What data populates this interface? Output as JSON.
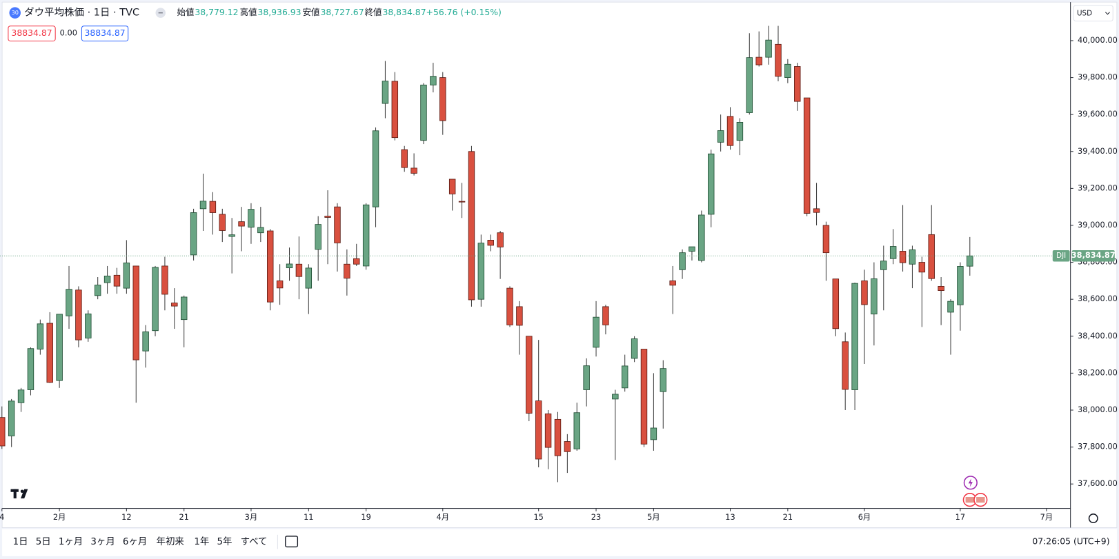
{
  "header": {
    "symbol_badge": "30",
    "title": "ダウ平均株価 · 1日 · TVC",
    "ohlc": [
      {
        "label": "始値",
        "value": "38,779.12"
      },
      {
        "label": "高値",
        "value": "38,936.93"
      },
      {
        "label": "安値",
        "value": "38,727.67"
      },
      {
        "label": "終値",
        "value": "38,834.87"
      }
    ],
    "change": "+56.76 (+0.15%)",
    "sell_price": "38834.87",
    "spread": "0.00",
    "buy_price": "38834.87"
  },
  "currency": "USD",
  "chart_data": {
    "type": "candlestick",
    "grid": false,
    "series": [
      {
        "name": "DJI",
        "up_color": "#6aa584",
        "down_color": "#d9503f",
        "open": [
          37960,
          37860,
          38040,
          38110,
          38330,
          38470,
          38160,
          38510,
          38650,
          38390,
          38620,
          38690,
          38730,
          38660,
          38780,
          38320,
          38430,
          38780,
          38580,
          38490,
          38840,
          39090,
          39130,
          39060,
          38940,
          39020,
          38990,
          38960,
          38970,
          38700,
          38770,
          38790,
          38660,
          38870,
          39050,
          39100,
          38790,
          38820,
          38780,
          39100,
          39660,
          39780,
          39410,
          39310,
          39460,
          39760,
          39800,
          39250,
          39130,
          39400,
          38600,
          38920,
          38960,
          38660,
          38560,
          38400,
          38050,
          37980,
          37950,
          37830,
          37790,
          38110,
          38340,
          38560,
          38060,
          38120,
          38280,
          38330,
          37840,
          38100,
          38700,
          38760,
          38860,
          38810,
          39060,
          39450,
          39590,
          39460,
          39610,
          39910,
          39910,
          39980,
          39800,
          39860,
          39690,
          39090,
          39000,
          38710,
          38370,
          38110,
          38700,
          38520,
          38760,
          38820,
          38860,
          38790,
          38800,
          38950,
          38670,
          38530,
          38570,
          38779.12
        ],
        "high": [
          38020,
          38060,
          38120,
          38340,
          38490,
          38530,
          38520,
          38780,
          38670,
          38540,
          38720,
          38780,
          38770,
          38920,
          38780,
          38460,
          38780,
          38830,
          38660,
          38620,
          39090,
          39280,
          39180,
          39090,
          39040,
          39100,
          39120,
          39100,
          38980,
          38790,
          38880,
          38940,
          38790,
          39050,
          39190,
          39120,
          38870,
          38900,
          39120,
          39530,
          39890,
          39830,
          39430,
          39390,
          39770,
          39880,
          39830,
          39250,
          39230,
          39430,
          38950,
          38950,
          38970,
          38670,
          38590,
          38400,
          38380,
          38000,
          37990,
          37870,
          38040,
          38280,
          38590,
          38570,
          38110,
          38300,
          38400,
          38330,
          38200,
          38270,
          38780,
          38870,
          38880,
          39080,
          39410,
          39600,
          39640,
          39580,
          40040,
          40050,
          40080,
          40080,
          39900,
          39880,
          39690,
          39230,
          39020,
          38710,
          38420,
          38690,
          38760,
          38800,
          38890,
          38980,
          39110,
          38890,
          38830,
          39110,
          38720,
          38600,
          38800,
          38936.93
        ],
        "low": [
          37790,
          37800,
          37990,
          38080,
          38300,
          38147,
          38120,
          38440,
          38340,
          38370,
          38600,
          38630,
          38630,
          38630,
          38040,
          38230,
          38400,
          38540,
          38440,
          38340,
          38810,
          38970,
          38950,
          38910,
          38740,
          38860,
          38900,
          38910,
          38540,
          38570,
          38700,
          38600,
          38520,
          38700,
          38790,
          38750,
          38620,
          38780,
          38760,
          38990,
          39580,
          39460,
          39290,
          39270,
          39440,
          39720,
          39490,
          39080,
          39040,
          38560,
          38560,
          38860,
          38710,
          38450,
          38300,
          37940,
          37690,
          37680,
          37610,
          37660,
          37780,
          38020,
          38290,
          38410,
          37730,
          38100,
          38260,
          37800,
          37780,
          37900,
          38520,
          38710,
          38810,
          38800,
          38990,
          39400,
          39410,
          39380,
          39600,
          39860,
          39870,
          39780,
          39770,
          39620,
          39050,
          39000,
          38700,
          38400,
          38000,
          38000,
          38250,
          38350,
          38540,
          38790,
          38750,
          38660,
          38450,
          38700,
          38460,
          38300,
          38430,
          38727.67
        ],
        "close": [
          37806,
          38049,
          38109,
          38333,
          38467,
          38150,
          38519,
          38654,
          38380,
          38521,
          38677,
          38726,
          38671,
          38797,
          38272,
          38424,
          38773,
          38627,
          38563,
          38612,
          39069,
          39131,
          39069,
          38972,
          38949,
          38996,
          39087,
          38989,
          38585,
          38661,
          38791,
          38723,
          38769,
          39005,
          39043,
          38905,
          38714,
          38790,
          39111,
          39512,
          39781,
          39475,
          39313,
          39282,
          39760,
          39807,
          39567,
          39170,
          39127,
          38597,
          38904,
          38892,
          38883,
          38461,
          38459,
          37983,
          37735,
          37798,
          37753,
          37775,
          37986,
          38240,
          38503,
          38461,
          38086,
          38239,
          38386,
          37816,
          37903,
          38225,
          38676,
          38852,
          38884,
          39056,
          39387,
          39513,
          39432,
          39558,
          39908,
          39869,
          40003,
          39807,
          39872,
          39671,
          39065,
          39070,
          38852,
          38441,
          38112,
          38686,
          38571,
          38711,
          38807,
          38886,
          38798,
          38868,
          38747,
          38712,
          38647,
          38589,
          38778,
          38834.87
        ]
      }
    ],
    "last_price_label": "38,834.87",
    "ylim": [
      37468,
      40220
    ],
    "yticks": [
      {
        "value": 37600,
        "label": "37,600.00"
      },
      {
        "value": 37800,
        "label": "37,800.00"
      },
      {
        "value": 38000,
        "label": "38,000.00"
      },
      {
        "value": 38200,
        "label": "38,200.00"
      },
      {
        "value": 38400,
        "label": "38,400.00"
      },
      {
        "value": 38600,
        "label": "38,600.00"
      },
      {
        "value": 38800,
        "label": "38,800.00"
      },
      {
        "value": 39000,
        "label": "39,000.00"
      },
      {
        "value": 39200,
        "label": "39,200.00"
      },
      {
        "value": 39400,
        "label": "39,400.00"
      },
      {
        "value": 39600,
        "label": "39,600.00"
      },
      {
        "value": 39800,
        "label": "39,800.00"
      },
      {
        "value": 40000,
        "label": "40,000.00"
      }
    ],
    "xlim": [
      -0.2,
      111.5
    ],
    "xticks": [
      {
        "value": 0,
        "label": "4"
      },
      {
        "value": 6,
        "label": "2月"
      },
      {
        "value": 13,
        "label": "12"
      },
      {
        "value": 19,
        "label": "21"
      },
      {
        "value": 26,
        "label": "3月"
      },
      {
        "value": 32,
        "label": "11"
      },
      {
        "value": 38,
        "label": "19"
      },
      {
        "value": 46,
        "label": "4月"
      },
      {
        "value": 56,
        "label": "15"
      },
      {
        "value": 62,
        "label": "23"
      },
      {
        "value": 68,
        "label": "5月"
      },
      {
        "value": 76,
        "label": "13"
      },
      {
        "value": 82,
        "label": "21"
      },
      {
        "value": 90,
        "label": "6月"
      },
      {
        "value": 100,
        "label": "17"
      },
      {
        "value": 109,
        "label": "7月"
      }
    ]
  },
  "toolbar": {
    "ranges": [
      "1日",
      "5日",
      "1ヶ月",
      "3ヶ月",
      "6ヶ月",
      "年初来",
      "1年",
      "5年",
      "すべて"
    ],
    "clock": "07:26:05 (UTC+9)"
  }
}
